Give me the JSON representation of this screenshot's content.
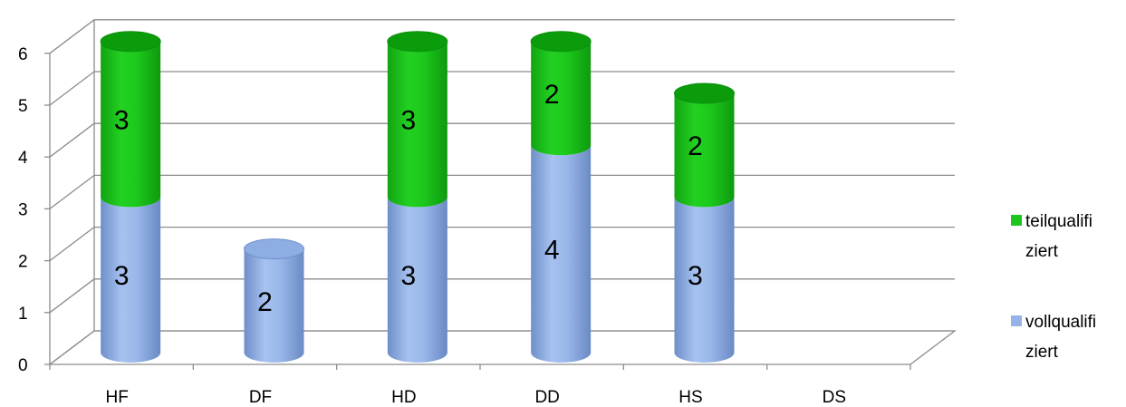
{
  "chart_data": {
    "type": "bar",
    "stacked": true,
    "three_d": true,
    "bar_shape": "cylinder",
    "categories": [
      "HF",
      "DF",
      "HD",
      "DD",
      "HS",
      "DS"
    ],
    "series": [
      {
        "name": "vollqualifiziert",
        "legend_lines": [
          "vollqualifi",
          "ziert"
        ],
        "values": [
          3,
          2,
          3,
          4,
          3,
          0
        ],
        "color": "#95b3e8"
      },
      {
        "name": "teilqualifiziert",
        "legend_lines": [
          "teilqualifi",
          "ziert"
        ],
        "values": [
          3,
          0,
          3,
          2,
          2,
          0
        ],
        "color": "#1ec51e"
      }
    ],
    "data_labels": [
      {
        "values": [
          "3",
          "2",
          "3",
          "4",
          "3",
          ""
        ]
      },
      {
        "values": [
          "3",
          "",
          "3",
          "2",
          "2",
          ""
        ]
      }
    ],
    "y_ticks": [
      "0",
      "1",
      "2",
      "3",
      "4",
      "5",
      "6"
    ],
    "ylim": [
      0,
      6
    ],
    "grid": true,
    "legend_position": "right",
    "legend_order": [
      "teilqualifiziert",
      "vollqualifiziert"
    ]
  }
}
